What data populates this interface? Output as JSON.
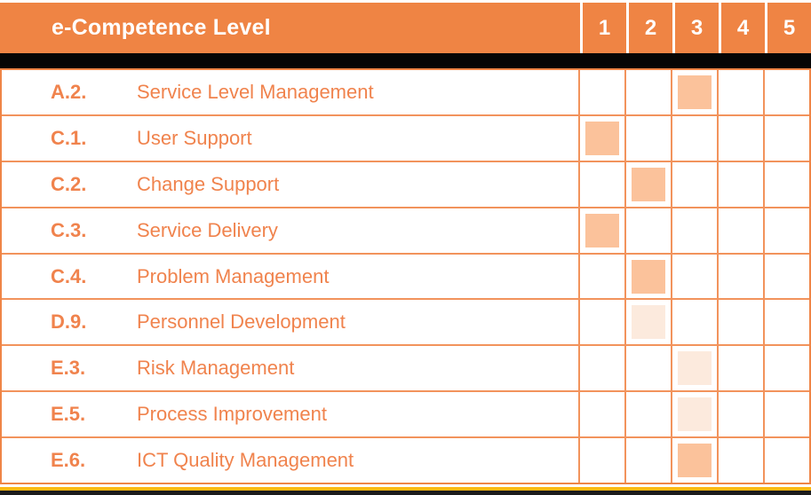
{
  "chart_data": {
    "type": "table",
    "title": "e-Competence Level",
    "level_columns": [
      "1",
      "2",
      "3",
      "4",
      "5"
    ],
    "rows": [
      {
        "code": "A.2.",
        "competence": "Service Level Management",
        "marked_level": 3,
        "marker_intensity": "strong"
      },
      {
        "code": "C.1.",
        "competence": "User Support",
        "marked_level": 1,
        "marker_intensity": "strong"
      },
      {
        "code": "C.2.",
        "competence": "Change Support",
        "marked_level": 2,
        "marker_intensity": "strong"
      },
      {
        "code": "C.3.",
        "competence": "Service Delivery",
        "marked_level": 1,
        "marker_intensity": "strong"
      },
      {
        "code": "C.4.",
        "competence": "Problem Management",
        "marked_level": 2,
        "marker_intensity": "strong"
      },
      {
        "code": "D.9.",
        "competence": "Personnel Development",
        "marked_level": 2,
        "marker_intensity": "light"
      },
      {
        "code": "E.3.",
        "competence": "Risk Management",
        "marked_level": 3,
        "marker_intensity": "light"
      },
      {
        "code": "E.5.",
        "competence": "Process Improvement",
        "marked_level": 3,
        "marker_intensity": "light"
      },
      {
        "code": "E.6.",
        "competence": "ICT Quality Management",
        "marked_level": 3,
        "marker_intensity": "strong"
      }
    ],
    "grid": true,
    "legend_position": "none"
  },
  "colors": {
    "header_bg": "#EF8444",
    "header_text": "#FFFFFF",
    "row_text": "#F0834D",
    "grid_line": "#F2935C",
    "outer_border": "#EF8546",
    "marker_strong": "#FBC29B",
    "marker_light": "#FCEADD",
    "separator_black": "#050505",
    "bottom_yellow": "#FDB913",
    "bottom_dark": "#1B1B1B"
  }
}
